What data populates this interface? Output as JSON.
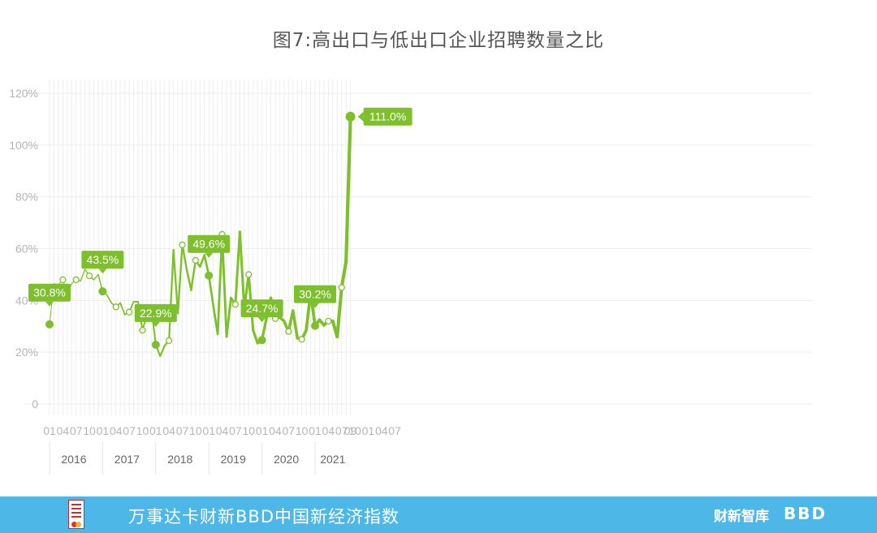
{
  "title": "图7:高出口与低出口企业招聘数量之比",
  "footer": {
    "text": "万事达卡财新BBD中国新经济指数",
    "brand_caixin": "财新智库",
    "brand_bbd": "BBD",
    "logo_icon": "new-economy-index-logo-icon"
  },
  "colors": {
    "line": "#7dc02c",
    "grid": "#eeeeee",
    "footer_bg": "#4db8e8"
  },
  "chart_data": {
    "type": "line",
    "title": "图7:高出口与低出口企业招聘数量之比",
    "xlabel": "",
    "ylabel": "",
    "ylim": [
      0,
      120
    ],
    "y_ticks": [
      "0",
      "20%",
      "40%",
      "60%",
      "80%",
      "100%",
      "120%"
    ],
    "y_tick_values": [
      0,
      20,
      40,
      60,
      80,
      100,
      120
    ],
    "grid": true,
    "legend": "none",
    "x_tick_labels": [
      "01",
      "04",
      "07",
      "10",
      "01",
      "04",
      "07",
      "10",
      "01",
      "04",
      "07",
      "10",
      "01",
      "04",
      "07",
      "10",
      "01",
      "04",
      "07",
      "10",
      "01",
      "04",
      "07",
      "10",
      "01",
      "04",
      "07",
      "09"
    ],
    "years": [
      "2016",
      "2017",
      "2018",
      "2019",
      "2020",
      "2021"
    ],
    "series": [
      {
        "x": [
          "2016-01",
          "2016-02",
          "2016-03",
          "2016-04",
          "2016-05",
          "2016-06",
          "2016-07",
          "2016-08",
          "2016-09",
          "2016-10",
          "2016-11",
          "2016-12",
          "2017-01",
          "2017-02",
          "2017-03",
          "2017-04",
          "2017-05",
          "2017-06",
          "2017-07",
          "2017-08",
          "2017-09",
          "2017-10",
          "2017-11",
          "2017-12",
          "2018-01",
          "2018-02",
          "2018-03",
          "2018-04",
          "2018-05",
          "2018-06",
          "2018-07",
          "2018-08",
          "2018-09",
          "2018-10",
          "2018-11",
          "2018-12",
          "2019-01",
          "2019-02",
          "2019-03",
          "2019-04",
          "2019-05",
          "2019-06",
          "2019-07",
          "2019-08",
          "2019-09",
          "2019-10",
          "2019-11",
          "2019-12",
          "2020-01",
          "2020-02",
          "2020-03",
          "2020-04",
          "2020-05",
          "2020-06",
          "2020-07",
          "2020-08",
          "2020-09",
          "2020-10",
          "2020-11",
          "2020-12",
          "2021-01",
          "2021-02",
          "2021-03",
          "2021-04",
          "2021-05",
          "2021-06",
          "2021-07",
          "2021-08",
          "2021-09"
        ],
        "values": [
          30.8,
          46.5,
          46.0,
          48.0,
          42.5,
          46.5,
          48.0,
          47.5,
          52.0,
          49.5,
          48.0,
          50.0,
          43.5,
          42.0,
          39.0,
          37.5,
          39.0,
          34.5,
          35.5,
          39.5,
          39.5,
          28.5,
          34.5,
          37.5,
          22.9,
          18.5,
          22.5,
          24.5,
          59.5,
          35.0,
          61.5,
          52.0,
          44.0,
          55.5,
          53.0,
          57.5,
          49.6,
          38.0,
          27.0,
          65.5,
          26.0,
          41.0,
          38.5,
          66.5,
          37.0,
          50.0,
          28.5,
          23.5,
          24.7,
          33.0,
          41.0,
          33.0,
          33.5,
          32.0,
          28.0,
          36.0,
          25.5,
          25.0,
          28.5,
          43.0,
          30.2,
          32.5,
          30.5,
          32.0,
          32.0,
          26.0,
          45.0,
          55.0,
          111.0
        ],
        "callouts": [
          {
            "index": 0,
            "label": "30.8%"
          },
          {
            "index": 12,
            "label": "43.5%"
          },
          {
            "index": 24,
            "label": "22.9%"
          },
          {
            "index": 36,
            "label": "49.6%"
          },
          {
            "index": 48,
            "label": "24.7%"
          },
          {
            "index": 60,
            "label": "30.2%"
          },
          {
            "index": 68,
            "label": "111.0%"
          }
        ]
      }
    ]
  }
}
